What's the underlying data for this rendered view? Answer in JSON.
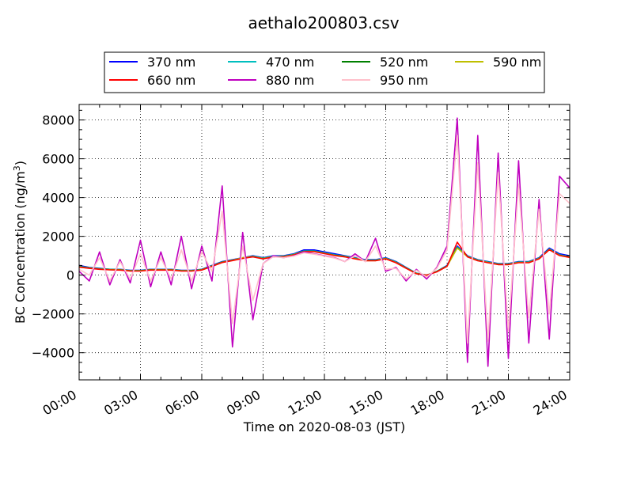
{
  "chart_data": {
    "type": "line",
    "title": "aethalo200803.csv",
    "xlabel": "Time on 2020-08-03 (JST)",
    "ylabel": "BC Concentration (ng/m³)",
    "ylabel_main": "BC Concentration (ng/m",
    "ylabel_sup": "3",
    "ylabel_close": ")",
    "xlim_hours": [
      0,
      24
    ],
    "ylim": [
      -5400,
      8800
    ],
    "grid": true,
    "grid_style": "dotted",
    "legend_position": "top-center (outside plot)",
    "x_tick_labels": [
      "00:00",
      "03:00",
      "06:00",
      "09:00",
      "12:00",
      "15:00",
      "18:00",
      "21:00",
      "24:00"
    ],
    "y_tick_values": [
      -4000,
      -2000,
      0,
      2000,
      4000,
      6000,
      8000
    ],
    "y_tick_labels": [
      "−4000",
      "−2000",
      "0",
      "2000",
      "4000",
      "6000",
      "8000"
    ],
    "x": [
      0.0,
      0.5,
      1.0,
      1.5,
      2.0,
      2.5,
      3.0,
      3.5,
      4.0,
      4.5,
      5.0,
      5.5,
      6.0,
      6.5,
      7.0,
      7.5,
      8.0,
      8.5,
      9.0,
      9.5,
      10.0,
      10.5,
      11.0,
      11.5,
      12.0,
      12.5,
      13.0,
      13.5,
      14.0,
      14.5,
      15.0,
      15.5,
      16.0,
      16.5,
      17.0,
      17.5,
      18.0,
      18.5,
      19.0,
      19.5,
      20.0,
      20.5,
      21.0,
      21.5,
      22.0,
      22.5,
      23.0,
      23.5,
      24.0
    ],
    "series": [
      {
        "name": "370 nm",
        "color": "#0000ff",
        "values": [
          500,
          400,
          350,
          300,
          300,
          250,
          250,
          300,
          300,
          300,
          250,
          250,
          300,
          500,
          700,
          800,
          900,
          1000,
          900,
          1000,
          1000,
          1100,
          1300,
          1300,
          1200,
          1100,
          1000,
          900,
          800,
          800,
          900,
          700,
          400,
          100,
          0,
          200,
          500,
          1500,
          1000,
          800,
          700,
          600,
          600,
          700,
          700,
          900,
          1400,
          1100,
          1000
        ]
      },
      {
        "name": "470 nm",
        "color": "#00bfbf",
        "values": [
          450,
          380,
          330,
          300,
          290,
          240,
          240,
          290,
          290,
          290,
          240,
          240,
          290,
          480,
          680,
          780,
          880,
          980,
          880,
          980,
          980,
          1080,
          1250,
          1250,
          1150,
          1050,
          980,
          880,
          780,
          780,
          880,
          680,
          380,
          100,
          0,
          200,
          480,
          1450,
          980,
          780,
          680,
          580,
          580,
          680,
          680,
          880,
          1350,
          1050,
          950
        ]
      },
      {
        "name": "520 nm",
        "color": "#008000",
        "values": [
          430,
          370,
          320,
          290,
          280,
          230,
          230,
          280,
          280,
          280,
          230,
          230,
          280,
          470,
          670,
          770,
          870,
          960,
          860,
          960,
          960,
          1060,
          1230,
          1230,
          1130,
          1030,
          960,
          860,
          760,
          760,
          860,
          660,
          370,
          90,
          0,
          190,
          470,
          1420,
          960,
          760,
          660,
          560,
          560,
          660,
          660,
          860,
          1330,
          1030,
          930
        ]
      },
      {
        "name": "590 nm",
        "color": "#bfbf00",
        "values": [
          420,
          360,
          310,
          280,
          270,
          220,
          220,
          270,
          270,
          270,
          220,
          220,
          270,
          460,
          660,
          760,
          900,
          950,
          850,
          950,
          950,
          1050,
          1220,
          1220,
          1120,
          1020,
          950,
          850,
          750,
          750,
          850,
          650,
          360,
          80,
          0,
          180,
          460,
          1400,
          950,
          750,
          650,
          550,
          550,
          650,
          650,
          850,
          1320,
          1020,
          920
        ]
      },
      {
        "name": "660 nm",
        "color": "#ff0000",
        "values": [
          410,
          350,
          300,
          270,
          260,
          210,
          210,
          260,
          260,
          260,
          210,
          210,
          260,
          450,
          650,
          750,
          860,
          940,
          840,
          940,
          940,
          1040,
          1210,
          1210,
          1110,
          1010,
          940,
          840,
          740,
          740,
          840,
          640,
          350,
          70,
          0,
          170,
          450,
          1700,
          940,
          740,
          640,
          540,
          540,
          640,
          640,
          840,
          1310,
          1010,
          910
        ]
      },
      {
        "name": "880 nm",
        "color": "#bf00bf",
        "values": [
          200,
          -300,
          1200,
          -500,
          800,
          -400,
          1800,
          -600,
          1200,
          -500,
          2000,
          -700,
          1500,
          -300,
          4600,
          -3700,
          2200,
          -2300,
          600,
          1000,
          900,
          1000,
          1200,
          1100,
          1000,
          900,
          700,
          1100,
          700,
          1900,
          200,
          400,
          -300,
          300,
          -200,
          400,
          1500,
          8100,
          -4500,
          7200,
          -4700,
          6300,
          -4300,
          5900,
          -3500,
          3900,
          -3300,
          5100,
          4500
        ]
      },
      {
        "name": "950 nm",
        "color": "#ffc0cb",
        "values": [
          300,
          0,
          900,
          -300,
          700,
          -200,
          1100,
          -300,
          900,
          -200,
          1300,
          -300,
          1200,
          200,
          3300,
          -2500,
          1500,
          -1300,
          600,
          950,
          900,
          980,
          1150,
          1080,
          980,
          880,
          700,
          1000,
          700,
          1500,
          300,
          350,
          -200,
          250,
          -100,
          350,
          1300,
          7200,
          -3500,
          5800,
          -3400,
          5300,
          -2900,
          4700,
          -2200,
          3400,
          -2000,
          4200,
          3700
        ]
      }
    ]
  }
}
